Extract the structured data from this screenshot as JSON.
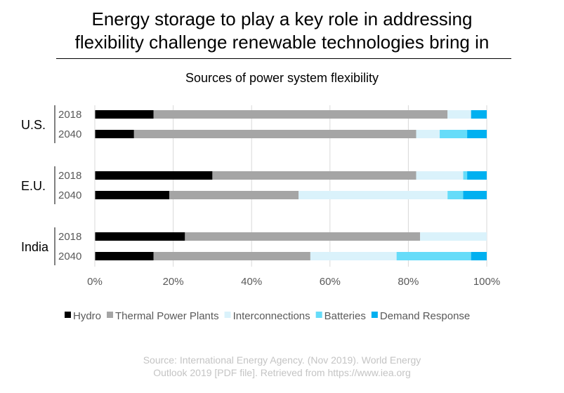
{
  "title_lines": [
    "Energy storage to play a key role in addressing",
    "flexibility challenge renewable technologies bring in"
  ],
  "source_lines": [
    "Source: International Energy Agency. (Nov 2019). World Energy",
    "Outlook 2019 [PDF file]. Retrieved from https://www.iea.org"
  ],
  "chart_data": {
    "type": "bar",
    "orientation": "horizontal",
    "stacked": "percent",
    "title": "Sources of power system flexibility",
    "groups": [
      {
        "label": "U.S.",
        "rows": [
          "2018",
          "2040"
        ]
      },
      {
        "label": "E.U.",
        "rows": [
          "2018",
          "2040"
        ]
      },
      {
        "label": "India",
        "rows": [
          "2018",
          "2040"
        ]
      }
    ],
    "series": [
      {
        "name": "Hydro",
        "color": "#000000",
        "values": [
          15,
          10,
          30,
          19,
          23,
          15
        ]
      },
      {
        "name": "Thermal Power Plants",
        "color": "#a5a5a5",
        "values": [
          75,
          72,
          52,
          33,
          60,
          40
        ]
      },
      {
        "name": "Interconnections",
        "color": "#daf2fb",
        "values": [
          6,
          6,
          12,
          38,
          17,
          22
        ]
      },
      {
        "name": "Batteries",
        "color": "#66dcf9",
        "values": [
          0,
          7,
          1,
          4,
          0,
          19
        ]
      },
      {
        "name": "Demand Response",
        "color": "#00b0f0",
        "values": [
          4,
          5,
          5,
          6,
          0,
          4
        ]
      }
    ],
    "xlim": [
      0,
      100
    ],
    "xticks": [
      "0%",
      "20%",
      "40%",
      "60%",
      "80%",
      "100%"
    ],
    "grid": true,
    "legend": "bottom"
  }
}
